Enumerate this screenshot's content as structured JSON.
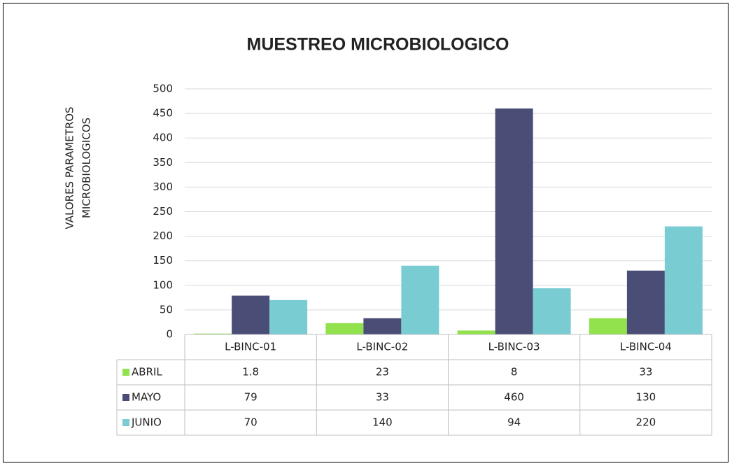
{
  "chart_data": {
    "type": "bar",
    "title": "MUESTREO MICROBIOLOGICO",
    "ylabel": [
      "VALORES PARAMETROS",
      "MICROBIOLOGICOS"
    ],
    "categories": [
      "L-BINC-01",
      "L-BINC-02",
      "L-BINC-03",
      "L-BINC-04"
    ],
    "series": [
      {
        "name": "ABRIL",
        "color": "#92e24e",
        "values": [
          1.8,
          23,
          8,
          33
        ]
      },
      {
        "name": "MAYO",
        "color": "#4a4e76",
        "values": [
          79,
          33,
          460,
          130
        ]
      },
      {
        "name": "JUNIO",
        "color": "#79cdd2",
        "values": [
          70,
          140,
          94,
          220
        ]
      }
    ],
    "ylim": [
      0,
      500
    ],
    "yticks": [
      0,
      50,
      100,
      150,
      200,
      250,
      300,
      350,
      400,
      450,
      500
    ],
    "grid": true,
    "data_table": true
  }
}
